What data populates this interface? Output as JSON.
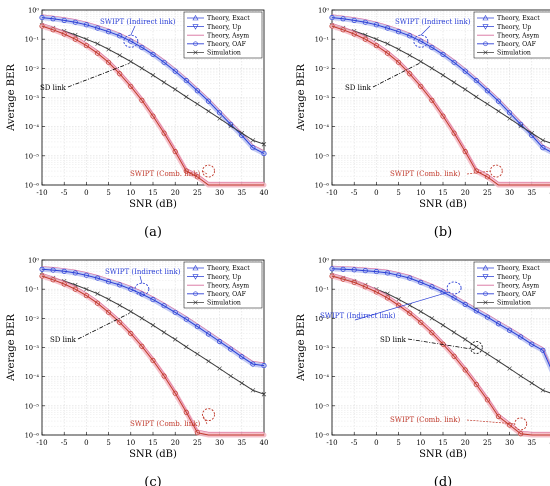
{
  "chart_data": [
    {
      "type": "line",
      "panel_label": "(a)",
      "xlabel": "SNR (dB)",
      "ylabel": "Average BER",
      "xlim": [
        -10,
        40
      ],
      "ylim": [
        1e-06,
        1
      ],
      "y_scale": "log",
      "grid": true,
      "legend_position": "top-right",
      "x": [
        -10,
        -7.5,
        -5,
        -2.5,
        0,
        2.5,
        5,
        7.5,
        10,
        12.5,
        15,
        17.5,
        20,
        22.5,
        25,
        27.5,
        30,
        32.5,
        35,
        37.5,
        40
      ],
      "series": [
        {
          "name": "SWIPT indirect link",
          "values": [
            0.55,
            0.5,
            0.44,
            0.38,
            0.31,
            0.24,
            0.18,
            0.13,
            0.085,
            0.052,
            0.03,
            0.016,
            0.008,
            0.0038,
            0.0017,
            0.00075,
            0.0003,
            0.00012,
            5e-05,
            1.9e-05,
            1.2e-05
          ]
        },
        {
          "name": "SD link",
          "values": [
            0.3,
            0.24,
            0.19,
            0.14,
            0.1,
            0.07,
            0.045,
            0.028,
            0.017,
            0.01,
            0.0058,
            0.0033,
            0.0019,
            0.00105,
            0.0006,
            0.00034,
            0.00019,
            0.000105,
            6e-05,
            3.4e-05,
            2.5e-05
          ]
        },
        {
          "name": "SWIPT combined link",
          "values": [
            0.28,
            0.21,
            0.15,
            0.1,
            0.06,
            0.033,
            0.016,
            0.0065,
            0.0024,
            0.0008,
            0.00023,
            6e-05,
            1.4e-05,
            3e-06,
            1.9e-06,
            1e-06,
            1e-06,
            1e-06,
            1e-06,
            1e-06,
            1e-06
          ]
        }
      ],
      "annotations": [
        {
          "text": "SWIPT (Indirect link)",
          "x": 10,
          "y": 0.085
        },
        {
          "text": "SD link",
          "x": 10,
          "y": 0.017
        },
        {
          "text": "SWIPT (Comb. link)",
          "x": 27.5,
          "y": 3e-06
        }
      ]
    },
    {
      "type": "line",
      "panel_label": "(b)",
      "xlabel": "SNR (dB)",
      "ylabel": "Average BER",
      "xlim": [
        -10,
        40
      ],
      "ylim": [
        1e-06,
        1
      ],
      "y_scale": "log",
      "grid": true,
      "legend_position": "top-right",
      "x": [
        -10,
        -7.5,
        -5,
        -2.5,
        0,
        2.5,
        5,
        7.5,
        10,
        12.5,
        15,
        17.5,
        20,
        22.5,
        25,
        27.5,
        30,
        32.5,
        35,
        37.5,
        40
      ],
      "series": [
        {
          "name": "SWIPT indirect link",
          "values": [
            0.55,
            0.5,
            0.44,
            0.38,
            0.31,
            0.24,
            0.18,
            0.13,
            0.085,
            0.052,
            0.03,
            0.016,
            0.008,
            0.0038,
            0.0017,
            0.00075,
            0.0003,
            0.00012,
            5e-05,
            1.9e-05,
            1.2e-05
          ]
        },
        {
          "name": "SD link",
          "values": [
            0.3,
            0.24,
            0.19,
            0.14,
            0.1,
            0.07,
            0.045,
            0.028,
            0.017,
            0.01,
            0.0058,
            0.0033,
            0.0019,
            0.00105,
            0.0006,
            0.00034,
            0.00019,
            0.000105,
            6e-05,
            3.4e-05,
            2.5e-05
          ]
        },
        {
          "name": "SWIPT combined link",
          "values": [
            0.28,
            0.21,
            0.15,
            0.1,
            0.06,
            0.033,
            0.016,
            0.0065,
            0.0024,
            0.0008,
            0.00023,
            6e-05,
            1.4e-05,
            3e-06,
            1.9e-06,
            1e-06,
            1e-06,
            1e-06,
            1e-06,
            1e-06,
            1e-06
          ]
        }
      ],
      "annotations": [
        {
          "text": "SWIPT (Indirect link)",
          "x": 10,
          "y": 0.085
        },
        {
          "text": "SD link",
          "x": 10,
          "y": 0.017
        },
        {
          "text": "SWIPT (Comb. link)",
          "x": 27,
          "y": 3e-06
        }
      ]
    },
    {
      "type": "line",
      "panel_label": "(c)",
      "xlabel": "SNR (dB)",
      "ylabel": "Average BER",
      "xlim": [
        -10,
        40
      ],
      "ylim": [
        1e-06,
        1
      ],
      "y_scale": "log",
      "grid": true,
      "legend_position": "top-right",
      "x": [
        -10,
        -7.5,
        -5,
        -2.5,
        0,
        2.5,
        5,
        7.5,
        10,
        12.5,
        15,
        17.5,
        20,
        22.5,
        25,
        27.5,
        30,
        32.5,
        35,
        37.5,
        40
      ],
      "series": [
        {
          "name": "SWIPT indirect link",
          "values": [
            0.48,
            0.45,
            0.41,
            0.36,
            0.3,
            0.24,
            0.18,
            0.14,
            0.1,
            0.068,
            0.044,
            0.027,
            0.016,
            0.0093,
            0.0052,
            0.0029,
            0.0016,
            0.00088,
            0.00048,
            0.00027,
            0.00024
          ]
        },
        {
          "name": "SD link",
          "values": [
            0.3,
            0.24,
            0.19,
            0.14,
            0.1,
            0.07,
            0.045,
            0.028,
            0.017,
            0.01,
            0.0058,
            0.0033,
            0.0019,
            0.00105,
            0.0006,
            0.00034,
            0.00019,
            0.000105,
            6e-05,
            3.4e-05,
            2.5e-05
          ]
        },
        {
          "name": "SWIPT combined link",
          "values": [
            0.28,
            0.21,
            0.15,
            0.1,
            0.06,
            0.033,
            0.016,
            0.0073,
            0.003,
            0.0011,
            0.00036,
            0.000105,
            2.7e-05,
            6e-06,
            1.2e-06,
            1e-06,
            1e-06,
            1e-06,
            1e-06,
            1e-06,
            1e-06
          ]
        }
      ],
      "annotations": [
        {
          "text": "SWIPT (Indirect link)",
          "x": 12.5,
          "y": 0.1
        },
        {
          "text": "SD link",
          "x": 10,
          "y": 0.017
        },
        {
          "text": "SWIPT (Comb. link)",
          "x": 27.5,
          "y": 5e-06
        }
      ]
    },
    {
      "type": "line",
      "panel_label": "(d)",
      "xlabel": "SNR (dB)",
      "ylabel": "Average BER",
      "xlim": [
        -10,
        40
      ],
      "ylim": [
        1e-06,
        1
      ],
      "y_scale": "log",
      "grid": true,
      "legend_position": "top-right",
      "x": [
        -10,
        -7.5,
        -5,
        -2.5,
        0,
        2.5,
        5,
        7.5,
        10,
        12.5,
        15,
        17.5,
        20,
        22.5,
        25,
        27.5,
        30,
        32.5,
        35,
        37.5,
        40
      ],
      "series": [
        {
          "name": "SWIPT indirect link",
          "values": [
            0.5,
            0.48,
            0.46,
            0.43,
            0.4,
            0.36,
            0.3,
            0.24,
            0.17,
            0.12,
            0.08,
            0.05,
            0.03,
            0.018,
            0.011,
            0.0065,
            0.0039,
            0.0023,
            0.0013,
            0.0008,
            0.00011
          ]
        },
        {
          "name": "SD link",
          "values": [
            0.3,
            0.24,
            0.19,
            0.14,
            0.1,
            0.07,
            0.045,
            0.028,
            0.017,
            0.01,
            0.0058,
            0.0033,
            0.0019,
            0.00105,
            0.0006,
            0.00034,
            0.00019,
            0.000105,
            6e-05,
            3.4e-05,
            2.5e-05
          ]
        },
        {
          "name": "SWIPT combined link",
          "values": [
            0.28,
            0.22,
            0.17,
            0.12,
            0.08,
            0.05,
            0.028,
            0.015,
            0.0072,
            0.0032,
            0.0013,
            0.0005,
            0.00017,
            5.4e-05,
            1.6e-05,
            4.3e-06,
            2.2e-06,
            1.1e-06,
            1e-06,
            1e-06,
            1e-06
          ]
        }
      ],
      "annotations": [
        {
          "text": "SWIPT (Indirect link)",
          "x": 17.5,
          "y": 0.11
        },
        {
          "text": "SD link",
          "x": 22.5,
          "y": 0.001
        },
        {
          "text": "SWIPT (Comb. link)",
          "x": 32.5,
          "y": 2.4e-06
        }
      ]
    }
  ],
  "legend": [
    "Theory, Exact",
    "Theory, Up",
    "Theory, Asym",
    "Theory, OAF",
    "Simulation"
  ],
  "x_ticks": [
    "-10",
    "-5",
    "0",
    "5",
    "10",
    "15",
    "20",
    "25",
    "30",
    "35",
    "40"
  ],
  "y_ticks": [
    "10⁻⁶",
    "10⁻⁵",
    "10⁻⁴",
    "10⁻³",
    "10⁻²",
    "10⁻¹",
    "10⁰"
  ],
  "colors": {
    "swipt_indirect": "#2b3fd6",
    "sd_link": "#3a3a3a",
    "swipt_combined": "#c0392b",
    "combined_halo": "#f4b6c2",
    "indirect_halo": "#b8c2f2",
    "grid": "#dddddd",
    "asym": "#d86a9a"
  }
}
